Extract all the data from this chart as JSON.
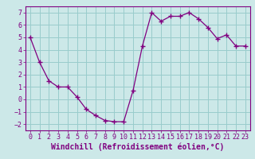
{
  "x": [
    0,
    1,
    2,
    3,
    4,
    5,
    6,
    7,
    8,
    9,
    10,
    11,
    12,
    13,
    14,
    15,
    16,
    17,
    18,
    19,
    20,
    21,
    22,
    23
  ],
  "y": [
    5.0,
    3.0,
    1.5,
    1.0,
    1.0,
    0.2,
    -0.8,
    -1.3,
    -1.7,
    -1.8,
    -1.8,
    0.7,
    4.3,
    7.0,
    6.3,
    6.7,
    6.7,
    7.0,
    6.5,
    5.8,
    4.9,
    5.2,
    4.3,
    4.3
  ],
  "xlabel": "Windchill (Refroidissement éolien,°C)",
  "xlim": [
    -0.5,
    23.5
  ],
  "ylim": [
    -2.5,
    7.5
  ],
  "yticks": [
    -2,
    -1,
    0,
    1,
    2,
    3,
    4,
    5,
    6,
    7
  ],
  "xticks": [
    0,
    1,
    2,
    3,
    4,
    5,
    6,
    7,
    8,
    9,
    10,
    11,
    12,
    13,
    14,
    15,
    16,
    17,
    18,
    19,
    20,
    21,
    22,
    23
  ],
  "line_color": "#800080",
  "marker": "+",
  "bg_color": "#cce8e8",
  "grid_color": "#99cccc",
  "axes_color": "#800080",
  "tick_color": "#800080",
  "xlabel_color": "#800080",
  "label_fontsize": 7,
  "tick_fontsize": 6
}
